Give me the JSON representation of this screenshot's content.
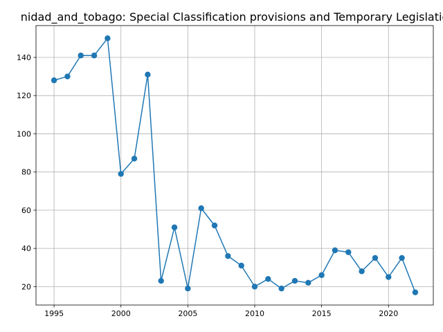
{
  "chart_data": {
    "type": "line",
    "title": "nidad_and_tobago: Special Classification provisions and Temporary Legislatio",
    "xlabel": "",
    "ylabel": "",
    "x": [
      1995,
      1996,
      1997,
      1998,
      1999,
      2000,
      2001,
      2002,
      2003,
      2004,
      2005,
      2006,
      2007,
      2008,
      2009,
      2010,
      2011,
      2012,
      2013,
      2014,
      2015,
      2016,
      2017,
      2018,
      2019,
      2020,
      2021,
      2022
    ],
    "series": [
      {
        "values": [
          128,
          130,
          141,
          141,
          150,
          79,
          87,
          131,
          23,
          51,
          19,
          61,
          52,
          36,
          31,
          20,
          24,
          19,
          23,
          22,
          26,
          39,
          38,
          28,
          35,
          25,
          35,
          17
        ],
        "color": "#1f77b4"
      }
    ],
    "xlim": [
      1993.65,
      2023.35
    ],
    "ylim": [
      10.35,
      156.65
    ],
    "xticks": [
      1995,
      2000,
      2005,
      2010,
      2015,
      2020
    ],
    "yticks": [
      20,
      40,
      60,
      80,
      100,
      120,
      140
    ],
    "grid": true,
    "legend": "none"
  }
}
